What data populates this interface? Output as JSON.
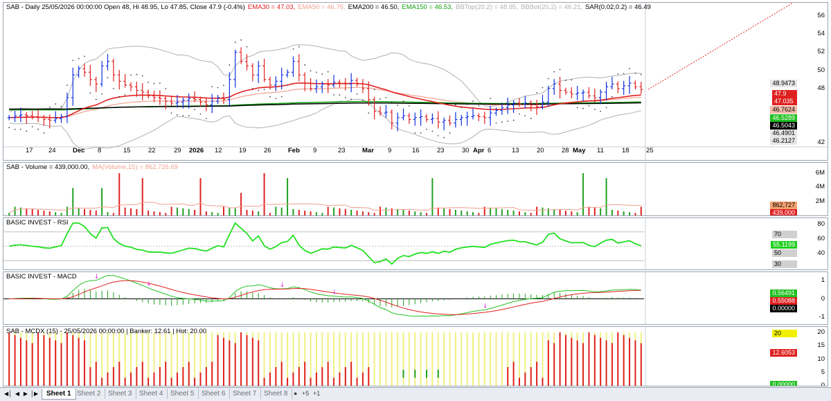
{
  "panels": {
    "price": {
      "title_parts": [
        {
          "text": "SAB - Daily 25/05/2026 00:00:00 Open 48, Hi 48.95, Lo 47.85, Close 47.9 (-0.4%)",
          "color": "#000000"
        },
        {
          "text": "EMA30 = 47.03,",
          "color": "#e02020"
        },
        {
          "text": "EMA50 = 46.76,",
          "color": "#f0a090"
        },
        {
          "text": "EMA200 = 46.50,",
          "color": "#000000"
        },
        {
          "text": "EMA150 = 46.53,",
          "color": "#10a010"
        },
        {
          "text": "BBTop(20,2) = 48.95,",
          "color": "#b0b0b0"
        },
        {
          "text": "BBBot(20,2) = 46.21,",
          "color": "#b0b0b0"
        },
        {
          "text": "SAR(0.02,0.2) = 46.49",
          "color": "#000000"
        }
      ],
      "y_ticks": [
        "56",
        "54",
        "52",
        "50",
        "48",
        "42"
      ],
      "x_labels": [
        {
          "t": "17",
          "b": false
        },
        {
          "t": "24",
          "b": false
        },
        {
          "t": "Dec",
          "b": true
        },
        {
          "t": "8",
          "b": false
        },
        {
          "t": "15",
          "b": false
        },
        {
          "t": "22",
          "b": false
        },
        {
          "t": "29",
          "b": false
        },
        {
          "t": "2026",
          "b": true
        },
        {
          "t": "12",
          "b": false
        },
        {
          "t": "19",
          "b": false
        },
        {
          "t": "26",
          "b": false
        },
        {
          "t": "Feb",
          "b": true
        },
        {
          "t": "9",
          "b": false
        },
        {
          "t": "23",
          "b": false
        },
        {
          "t": "Mar",
          "b": true
        },
        {
          "t": "9",
          "b": false
        },
        {
          "t": "16",
          "b": false
        },
        {
          "t": "23",
          "b": false
        },
        {
          "t": "30",
          "b": false
        },
        {
          "t": "Apr",
          "b": true
        },
        {
          "t": "6",
          "b": false
        },
        {
          "t": "13",
          "b": false
        },
        {
          "t": "20",
          "b": false
        },
        {
          "t": "28",
          "b": false
        },
        {
          "t": "May",
          "b": true
        },
        {
          "t": "11",
          "b": false
        },
        {
          "t": "18",
          "b": false
        },
        {
          "t": "25",
          "b": false
        }
      ],
      "tags": [
        {
          "text": "48.9473",
          "bg": "#e6e6e6",
          "fg": "#000000"
        },
        {
          "text": "47.9",
          "bg": "#e02020",
          "fg": "#ffffff"
        },
        {
          "text": "47.035",
          "bg": "#e02020",
          "fg": "#ffffff"
        },
        {
          "text": "46.7624",
          "bg": "#f4b8a8",
          "fg": "#000000"
        },
        {
          "text": "46.5289",
          "bg": "#20c020",
          "fg": "#ffffff"
        },
        {
          "text": "46.5043",
          "bg": "#000000",
          "fg": "#ffffff"
        },
        {
          "text": "46.4901",
          "bg": "#e6e6e6",
          "fg": "#000000"
        },
        {
          "text": "46.2127",
          "bg": "#e6e6e6",
          "fg": "#000000"
        }
      ]
    },
    "volume": {
      "title_parts": [
        {
          "text": "SAB - Volume = 439,000.00,",
          "color": "#000000"
        },
        {
          "text": "MA(Volume,15) = 862,726.69",
          "color": "#f0a090"
        }
      ],
      "y_ticks": [
        "6M",
        "4M",
        "2M"
      ],
      "tags": [
        {
          "text": "862,727",
          "bg": "#f4a070",
          "fg": "#000000"
        },
        {
          "text": "439,000",
          "bg": "#e02020",
          "fg": "#ffffff"
        }
      ]
    },
    "rsi": {
      "title_parts": [
        {
          "text": "BASIC INVEST - RSI",
          "color": "#000000"
        }
      ],
      "y_ticks": [
        "80",
        "60",
        "40"
      ],
      "tags": [
        {
          "text": "70",
          "bg": "#d0d0d0",
          "fg": "#000000"
        },
        {
          "text": "55.1199",
          "bg": "#20d020",
          "fg": "#ffffff"
        },
        {
          "text": "50",
          "bg": "#d0d0d0",
          "fg": "#000000"
        },
        {
          "text": "30",
          "bg": "#d0d0d0",
          "fg": "#000000"
        }
      ]
    },
    "macd": {
      "title_parts": [
        {
          "text": "BASIC INVEST - MACD",
          "color": "#000000"
        }
      ],
      "y_ticks": [
        "1",
        "0",
        "-1"
      ],
      "tags": [
        {
          "text": "0.56491",
          "bg": "#20c020",
          "fg": "#ffffff"
        },
        {
          "text": "0.55088",
          "bg": "#e02020",
          "fg": "#ffffff"
        },
        {
          "text": "0.00000",
          "bg": "#000000",
          "fg": "#ffffff"
        }
      ]
    },
    "mcdx": {
      "title_parts": [
        {
          "text": "SAB - MCDX (15) - 25/05/2026 00:00:00 | Banker: 12.61 | Hot: 20.00",
          "color": "#000000"
        }
      ],
      "y_ticks": [
        "20",
        "15",
        "10",
        "5",
        "0"
      ],
      "tags": [
        {
          "text": "20",
          "bg": "#f0f000",
          "fg": "#000000"
        },
        {
          "text": "12.6053",
          "bg": "#e02020",
          "fg": "#ffffff"
        },
        {
          "text": "0.00000",
          "bg": "#20c020",
          "fg": "#ffffff"
        }
      ]
    }
  },
  "sheet_tabs": [
    "Sheet 1",
    "Sheet 2",
    "Sheet 3",
    "Sheet 4",
    "Sheet 5",
    "Sheet 6",
    "Sheet 7",
    "Sheet 8"
  ],
  "active_tab": "Sheet 1",
  "nav_icons": [
    "first-icon",
    "prev-icon",
    "next-icon",
    "last-icon"
  ],
  "colors": {
    "up": "#1030e0",
    "down": "#e02020",
    "ema30": "#e02020",
    "ema50": "#f0a090",
    "ema200": "#000000",
    "ema150": "#10a010",
    "bb": "#b0b0b0",
    "rsi": "#20e020",
    "volume_up": "#20a020",
    "volume_down": "#e02020",
    "banker": "#e02020",
    "hot": "#f0f080",
    "retail": "#20a020"
  },
  "chart_data": {
    "type": "line",
    "series": [
      {
        "name": "EMA30",
        "values": [
          47.03
        ]
      },
      {
        "name": "EMA50",
        "values": [
          46.76
        ]
      },
      {
        "name": "EMA200",
        "values": [
          46.5
        ]
      },
      {
        "name": "EMA150",
        "values": [
          46.53
        ]
      },
      {
        "name": "BBTop(20,2)",
        "values": [
          48.95
        ]
      },
      {
        "name": "BBBot(20,2)",
        "values": [
          46.21
        ]
      },
      {
        "name": "SAR(0.02,0.2)",
        "values": [
          46.49
        ]
      }
    ],
    "close_series": [
      44.8,
      45.0,
      45.1,
      45.0,
      44.9,
      44.8,
      44.6,
      44.5,
      44.7,
      44.9,
      47.0,
      49.5,
      50.2,
      49.8,
      49.0,
      48.5,
      50.5,
      51.0,
      49.5,
      48.8,
      48.4,
      48.2,
      47.8,
      47.6,
      47.2,
      47.0,
      46.9,
      46.6,
      46.4,
      46.5,
      46.7,
      46.9,
      46.8,
      46.5,
      46.2,
      46.6,
      47.0,
      46.8,
      49.0,
      52.0,
      51.0,
      50.5,
      49.5,
      50.5,
      49.0,
      48.4,
      48.8,
      49.5,
      49.8,
      51.0,
      49.5,
      48.6,
      48.0,
      48.2,
      48.5,
      48.4,
      48.7,
      48.6,
      48.5,
      48.9,
      48.5,
      48.0,
      46.8,
      45.5,
      45.3,
      45.4,
      44.2,
      44.8,
      45.0,
      44.6,
      44.8,
      44.9,
      44.6,
      44.7,
      44.3,
      44.5,
      44.2,
      44.6,
      44.8,
      44.9,
      45.0,
      44.9,
      44.8,
      45.3,
      45.6,
      45.9,
      46.2,
      46.4,
      46.3,
      46.4,
      46.2,
      46.0,
      46.5,
      48.0,
      48.5,
      47.8,
      47.6,
      47.4,
      47.5,
      47.6,
      47.2,
      47.0,
      47.6,
      48.2,
      48.5,
      48.0,
      48.3,
      48.6,
      48.2,
      47.9
    ],
    "ylim": [
      41.5,
      57.0
    ],
    "volume_ylim": [
      0,
      6500000
    ],
    "rsi_ylim": [
      20,
      85
    ],
    "macd_ylim": [
      -1.3,
      1.3
    ],
    "mcdx_ylim": [
      0,
      20
    ]
  }
}
